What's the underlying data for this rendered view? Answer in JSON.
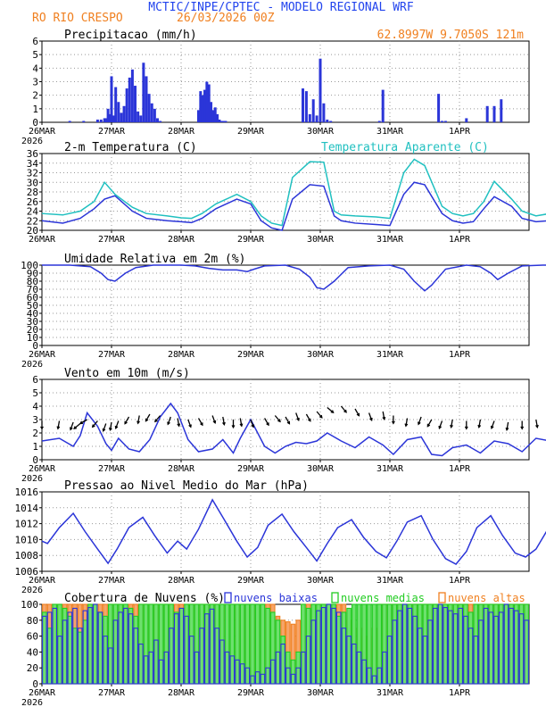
{
  "header": {
    "title": "MCTIC/INPE/CPTEC - MODELO REGIONAL WRF",
    "station": "RO RIO CRESPO",
    "run": "26/03/2026 00Z",
    "location": "62.8997W 9.7050S 121m"
  },
  "colors": {
    "title": "#2244ee",
    "orange": "#f08020",
    "cyan": "#20c0c0",
    "blue": "#2b35d8",
    "green": "#22cc22",
    "black": "#000000",
    "grid": "#999999"
  },
  "chart_data": [
    {
      "type": "bar",
      "title": "Precipitacao (mm/h)",
      "ylim": [
        0,
        6
      ],
      "yticks": [
        "0",
        "1",
        "2",
        "3",
        "4",
        "5",
        "6"
      ],
      "xticks": [
        "26MAR",
        "27MAR",
        "28MAR",
        "29MAR",
        "30MAR",
        "31MAR",
        "1APR"
      ],
      "year_label": "2026",
      "x": [
        0.4,
        0.6,
        0.8,
        0.85,
        0.9,
        0.92,
        0.95,
        0.97,
        1.0,
        1.03,
        1.06,
        1.1,
        1.14,
        1.18,
        1.22,
        1.26,
        1.3,
        1.34,
        1.38,
        1.42,
        1.46,
        1.5,
        1.54,
        1.58,
        1.62,
        1.66,
        1.7,
        2.25,
        2.28,
        2.31,
        2.34,
        2.37,
        2.4,
        2.43,
        2.46,
        2.49,
        2.52,
        2.55,
        2.58,
        2.61,
        2.64,
        3.75,
        3.8,
        3.85,
        3.9,
        3.95,
        4.0,
        4.05,
        4.1,
        4.15,
        4.85,
        4.9,
        5.7,
        5.75,
        5.8,
        6.1,
        6.4,
        6.5,
        6.6,
        7.75,
        7.82,
        7.9,
        7.97,
        8.03
      ],
      "values": [
        0.1,
        0.1,
        0.2,
        0.2,
        0.3,
        0.3,
        1.0,
        0.6,
        3.4,
        0.5,
        2.6,
        1.5,
        0.7,
        1.2,
        2.5,
        3.3,
        3.9,
        2.7,
        0.8,
        0.5,
        4.4,
        3.4,
        2.1,
        1.4,
        1.0,
        0.3,
        0.1,
        0.9,
        2.3,
        2.0,
        2.4,
        3.0,
        2.8,
        1.5,
        0.9,
        1.1,
        0.6,
        0.2,
        0.1,
        0.1,
        0.1,
        2.5,
        2.3,
        0.6,
        1.7,
        0.5,
        4.7,
        1.4,
        0.2,
        0.1,
        0.1,
        2.4,
        2.1,
        0.1,
        0.1,
        0.3,
        1.2,
        1.2,
        1.7,
        1.0,
        1.2,
        0.5,
        1.7,
        0.5
      ]
    },
    {
      "type": "line",
      "title": "2-m Temperatura (C)",
      "legend": "Temperatura Aparente (C)",
      "ylim": [
        20,
        36
      ],
      "yticks": [
        "20",
        "22",
        "24",
        "26",
        "28",
        "30",
        "32",
        "34",
        "36"
      ],
      "xticks": [
        "26MAR",
        "27MAR",
        "28MAR",
        "29MAR",
        "30MAR",
        "31MAR",
        "1APR"
      ],
      "series": [
        {
          "name": "2-m Temperatura (C)",
          "x": [
            0,
            0.3,
            0.55,
            0.75,
            0.9,
            1.05,
            1.3,
            1.5,
            1.8,
            2.0,
            2.15,
            2.3,
            2.5,
            2.8,
            3.0,
            3.15,
            3.3,
            3.45,
            3.6,
            3.85,
            4.05,
            4.2,
            4.3,
            4.5,
            4.8,
            5.0,
            5.2,
            5.35,
            5.5,
            5.75,
            5.9,
            6.05,
            6.2,
            6.35,
            6.5,
            6.75,
            6.9,
            7.1,
            7.3,
            7.5,
            7.7,
            7.9,
            8.0
          ],
          "values": [
            22.0,
            21.5,
            22.5,
            24.5,
            26.5,
            27.2,
            24.0,
            22.5,
            22.0,
            21.8,
            21.6,
            22.5,
            24.5,
            26.5,
            25.5,
            22.0,
            20.5,
            20.0,
            26.5,
            29.5,
            29.2,
            23.0,
            22.0,
            21.5,
            21.2,
            21.0,
            27.5,
            30.0,
            29.5,
            23.5,
            22.0,
            21.5,
            21.8,
            24.5,
            27.0,
            25.0,
            22.5,
            21.8,
            22.0,
            23.0,
            24.5,
            25.5,
            24.5
          ]
        },
        {
          "name": "Temperatura Aparente (C)",
          "x": [
            0,
            0.3,
            0.55,
            0.75,
            0.9,
            1.05,
            1.3,
            1.5,
            1.8,
            2.0,
            2.15,
            2.3,
            2.5,
            2.8,
            3.0,
            3.15,
            3.3,
            3.45,
            3.6,
            3.85,
            4.05,
            4.2,
            4.3,
            4.5,
            4.8,
            5.0,
            5.2,
            5.35,
            5.5,
            5.75,
            5.9,
            6.05,
            6.2,
            6.35,
            6.5,
            6.75,
            6.9,
            7.1,
            7.3,
            7.5,
            7.7,
            7.9,
            8.0
          ],
          "values": [
            23.5,
            23.2,
            24.0,
            26.0,
            30.0,
            27.5,
            24.8,
            23.5,
            23.0,
            22.6,
            22.5,
            23.5,
            25.5,
            27.5,
            26.0,
            23.0,
            21.5,
            21.0,
            31.0,
            34.3,
            34.2,
            24.0,
            23.2,
            23.0,
            22.8,
            22.5,
            32.0,
            34.8,
            33.5,
            25.0,
            23.5,
            23.0,
            23.5,
            26.0,
            30.2,
            26.5,
            24.0,
            23.0,
            23.5,
            24.5,
            25.5,
            26.5,
            25.5
          ]
        }
      ]
    },
    {
      "type": "line",
      "title": "Umidade Relativa em 2m (%)",
      "ylim": [
        0,
        100
      ],
      "yticks": [
        "0",
        "10",
        "20",
        "30",
        "40",
        "50",
        "60",
        "70",
        "80",
        "90",
        "100"
      ],
      "xticks": [
        "26MAR",
        "27MAR",
        "28MAR",
        "29MAR",
        "30MAR",
        "31MAR",
        "1APR"
      ],
      "year_label": "2026",
      "x": [
        0,
        0.4,
        0.7,
        0.85,
        0.95,
        1.05,
        1.2,
        1.35,
        1.6,
        2.0,
        2.2,
        2.4,
        2.6,
        2.8,
        2.95,
        3.05,
        3.2,
        3.5,
        3.7,
        3.85,
        3.95,
        4.05,
        4.2,
        4.4,
        4.7,
        5.0,
        5.2,
        5.35,
        5.5,
        5.6,
        5.8,
        6.1,
        6.3,
        6.45,
        6.55,
        6.7,
        6.9,
        7.2,
        7.5,
        7.7,
        7.85,
        8.0
      ],
      "values": [
        100,
        100,
        98,
        90,
        82,
        80,
        90,
        97,
        100,
        100,
        99,
        96,
        94,
        94,
        92,
        95,
        99,
        100,
        95,
        85,
        72,
        70,
        80,
        97,
        99,
        100,
        95,
        80,
        68,
        75,
        95,
        100,
        98,
        90,
        82,
        90,
        99,
        100,
        100,
        98,
        93,
        99
      ]
    },
    {
      "type": "line",
      "title": "Vento em 10m (m/s)",
      "ylim": [
        0,
        6
      ],
      "yticks": [
        "0",
        "1",
        "2",
        "3",
        "4",
        "5",
        "6"
      ],
      "xticks": [
        "26MAR",
        "27MAR",
        "28MAR",
        "29MAR",
        "30MAR",
        "31MAR",
        "1APR"
      ],
      "year_label": "2026",
      "x": [
        0,
        0.25,
        0.45,
        0.55,
        0.65,
        0.8,
        0.92,
        1.0,
        1.1,
        1.25,
        1.4,
        1.55,
        1.7,
        1.85,
        1.95,
        2.1,
        2.25,
        2.45,
        2.6,
        2.75,
        2.85,
        3.0,
        3.2,
        3.35,
        3.5,
        3.65,
        3.8,
        3.95,
        4.1,
        4.3,
        4.5,
        4.7,
        4.9,
        5.05,
        5.25,
        5.45,
        5.6,
        5.75,
        5.9,
        6.1,
        6.3,
        6.5,
        6.7,
        6.9,
        7.1,
        7.3,
        7.5,
        7.7,
        7.85,
        8.0
      ],
      "values": [
        1.4,
        1.6,
        1.0,
        1.8,
        3.5,
        2.5,
        1.2,
        0.7,
        1.6,
        0.8,
        0.6,
        1.5,
        3.2,
        4.2,
        3.5,
        1.5,
        0.6,
        0.8,
        1.5,
        0.5,
        1.6,
        3.0,
        1.0,
        0.5,
        1.0,
        1.3,
        1.2,
        1.4,
        2.0,
        1.4,
        0.9,
        1.7,
        1.1,
        0.4,
        1.5,
        1.7,
        0.4,
        0.3,
        0.9,
        1.1,
        0.5,
        1.4,
        1.2,
        0.6,
        1.6,
        1.4,
        0.7,
        1.7,
        1.6,
        0.5
      ],
      "arrow_speed": [
        2.9,
        2.9,
        2.8,
        2.7,
        3.0,
        2.9,
        2.7,
        2.8,
        2.9,
        3.2,
        3.3,
        3.4,
        3.3,
        3.2,
        3.1,
        3.0,
        3.1,
        3.3,
        3.2,
        3.0,
        3.1,
        3.0,
        3.1,
        3.3,
        3.2,
        3.5,
        3.4,
        3.6,
        3.9,
        4.0,
        3.8,
        3.5,
        3.6,
        3.3,
        3.1,
        3.2,
        3.0,
        2.9,
        3.0,
        2.9,
        3.0,
        2.9,
        2.8,
        2.9,
        3.0,
        2.9,
        2.9,
        2.9,
        3.0,
        2.9
      ],
      "arrow_dir": [
        180,
        190,
        200,
        230,
        240,
        220,
        200,
        190,
        200,
        210,
        190,
        210,
        220,
        200,
        170,
        160,
        150,
        160,
        170,
        180,
        170,
        160,
        150,
        140,
        150,
        160,
        150,
        140,
        130,
        140,
        150,
        160,
        170,
        180,
        190,
        200,
        210,
        200,
        190,
        180,
        190,
        200,
        190,
        180,
        170,
        180,
        190,
        200,
        190,
        180
      ]
    },
    {
      "type": "line",
      "title": "Pressao ao Nivel Medio do Mar (hPa)",
      "ylim": [
        1006,
        1016
      ],
      "yticks": [
        "1006",
        "1008",
        "1010",
        "1012",
        "1014",
        "1016"
      ],
      "xticks": [
        "26MAR",
        "27MAR",
        "28MAR",
        "29MAR",
        "30MAR",
        "31MAR",
        "1APR"
      ],
      "year_label": "2026",
      "x": [
        0,
        0.08,
        0.25,
        0.45,
        0.62,
        0.8,
        0.95,
        1.08,
        1.25,
        1.45,
        1.62,
        1.8,
        1.95,
        2.08,
        2.25,
        2.45,
        2.62,
        2.8,
        2.95,
        3.1,
        3.25,
        3.45,
        3.62,
        3.8,
        3.95,
        4.1,
        4.25,
        4.45,
        4.62,
        4.8,
        4.95,
        5.1,
        5.25,
        5.45,
        5.62,
        5.8,
        5.95,
        6.1,
        6.25,
        6.45,
        6.62,
        6.8,
        6.95,
        7.1,
        7.25,
        7.45,
        7.62,
        7.8,
        7.95,
        8.0
      ],
      "values": [
        1009.8,
        1009.5,
        1011.5,
        1013.3,
        1011.0,
        1008.8,
        1007.0,
        1008.8,
        1011.5,
        1012.8,
        1010.5,
        1008.3,
        1009.8,
        1008.8,
        1011.3,
        1015.0,
        1012.5,
        1009.8,
        1007.8,
        1009.0,
        1011.8,
        1013.2,
        1011.0,
        1009.0,
        1007.3,
        1009.5,
        1011.5,
        1012.5,
        1010.3,
        1008.5,
        1007.7,
        1009.8,
        1012.2,
        1013.0,
        1010.0,
        1007.6,
        1006.9,
        1008.5,
        1011.5,
        1013.0,
        1010.5,
        1008.3,
        1007.8,
        1008.8,
        1011.0,
        1013.0,
        1010.5,
        1008.2,
        1008.5,
        1009.0
      ]
    },
    {
      "type": "bar",
      "title": "Cobertura de Nuvens (%)",
      "legend": [
        "nuvens baixas",
        "nuvens medias",
        "nuvens altas"
      ],
      "ylim": [
        0,
        100
      ],
      "yticks": [
        "0",
        "20",
        "40",
        "60",
        "80",
        "100"
      ],
      "xticks": [
        "26MAR",
        "27MAR",
        "28MAR",
        "29MAR",
        "30MAR",
        "31MAR",
        "1APR"
      ],
      "year_label": "2026",
      "categories_count": 96,
      "series": [
        {
          "name": "nuvens altas",
          "values": [
            100,
            100,
            100,
            100,
            100,
            100,
            100,
            100,
            100,
            100,
            100,
            100,
            100,
            100,
            100,
            100,
            100,
            100,
            100,
            100,
            100,
            100,
            100,
            100,
            100,
            100,
            100,
            100,
            100,
            100,
            100,
            100,
            100,
            100,
            100,
            100,
            100,
            100,
            100,
            100,
            100,
            100,
            100,
            100,
            100,
            100,
            85,
            80,
            78,
            75,
            80,
            100,
            100,
            100,
            100,
            100,
            100,
            100,
            100,
            100,
            80,
            75,
            70,
            60,
            60,
            70,
            100,
            100,
            100,
            100,
            100,
            100,
            100,
            100,
            100,
            100,
            100,
            100,
            100,
            100,
            100,
            100,
            100,
            100,
            100,
            100,
            100,
            100,
            100,
            100,
            100,
            100,
            100,
            100,
            100,
            100
          ]
        },
        {
          "name": "nuvens medias",
          "values": [
            90,
            70,
            100,
            100,
            95,
            85,
            70,
            65,
            80,
            100,
            100,
            90,
            85,
            100,
            100,
            100,
            100,
            95,
            85,
            100,
            100,
            100,
            100,
            100,
            100,
            100,
            90,
            95,
            100,
            100,
            100,
            100,
            100,
            100,
            100,
            100,
            100,
            100,
            100,
            100,
            100,
            100,
            100,
            100,
            95,
            90,
            80,
            60,
            40,
            30,
            40,
            100,
            95,
            100,
            100,
            100,
            100,
            100,
            85,
            90,
            95,
            100,
            100,
            100,
            100,
            100,
            100,
            100,
            100,
            100,
            100,
            100,
            100,
            100,
            100,
            100,
            100,
            100,
            100,
            100,
            100,
            100,
            100,
            100,
            90,
            100,
            100,
            100,
            100,
            100,
            100,
            100,
            100,
            100,
            100,
            100
          ]
        },
        {
          "name": "nuvens baixas",
          "values": [
            85,
            90,
            95,
            60,
            80,
            90,
            95,
            70,
            92,
            96,
            100,
            90,
            60,
            45,
            80,
            90,
            95,
            88,
            70,
            50,
            35,
            40,
            55,
            30,
            40,
            70,
            88,
            95,
            85,
            60,
            40,
            70,
            88,
            94,
            70,
            55,
            40,
            35,
            30,
            25,
            20,
            10,
            15,
            12,
            20,
            30,
            40,
            50,
            20,
            12,
            20,
            40,
            60,
            80,
            92,
            96,
            100,
            95,
            90,
            70,
            60,
            50,
            40,
            30,
            20,
            10,
            20,
            40,
            60,
            80,
            92,
            100,
            95,
            85,
            70,
            60,
            80,
            95,
            100,
            96,
            92,
            88,
            95,
            85,
            70,
            60,
            80,
            95,
            90,
            85,
            90,
            100,
            95,
            92,
            88,
            80
          ]
        }
      ]
    }
  ]
}
